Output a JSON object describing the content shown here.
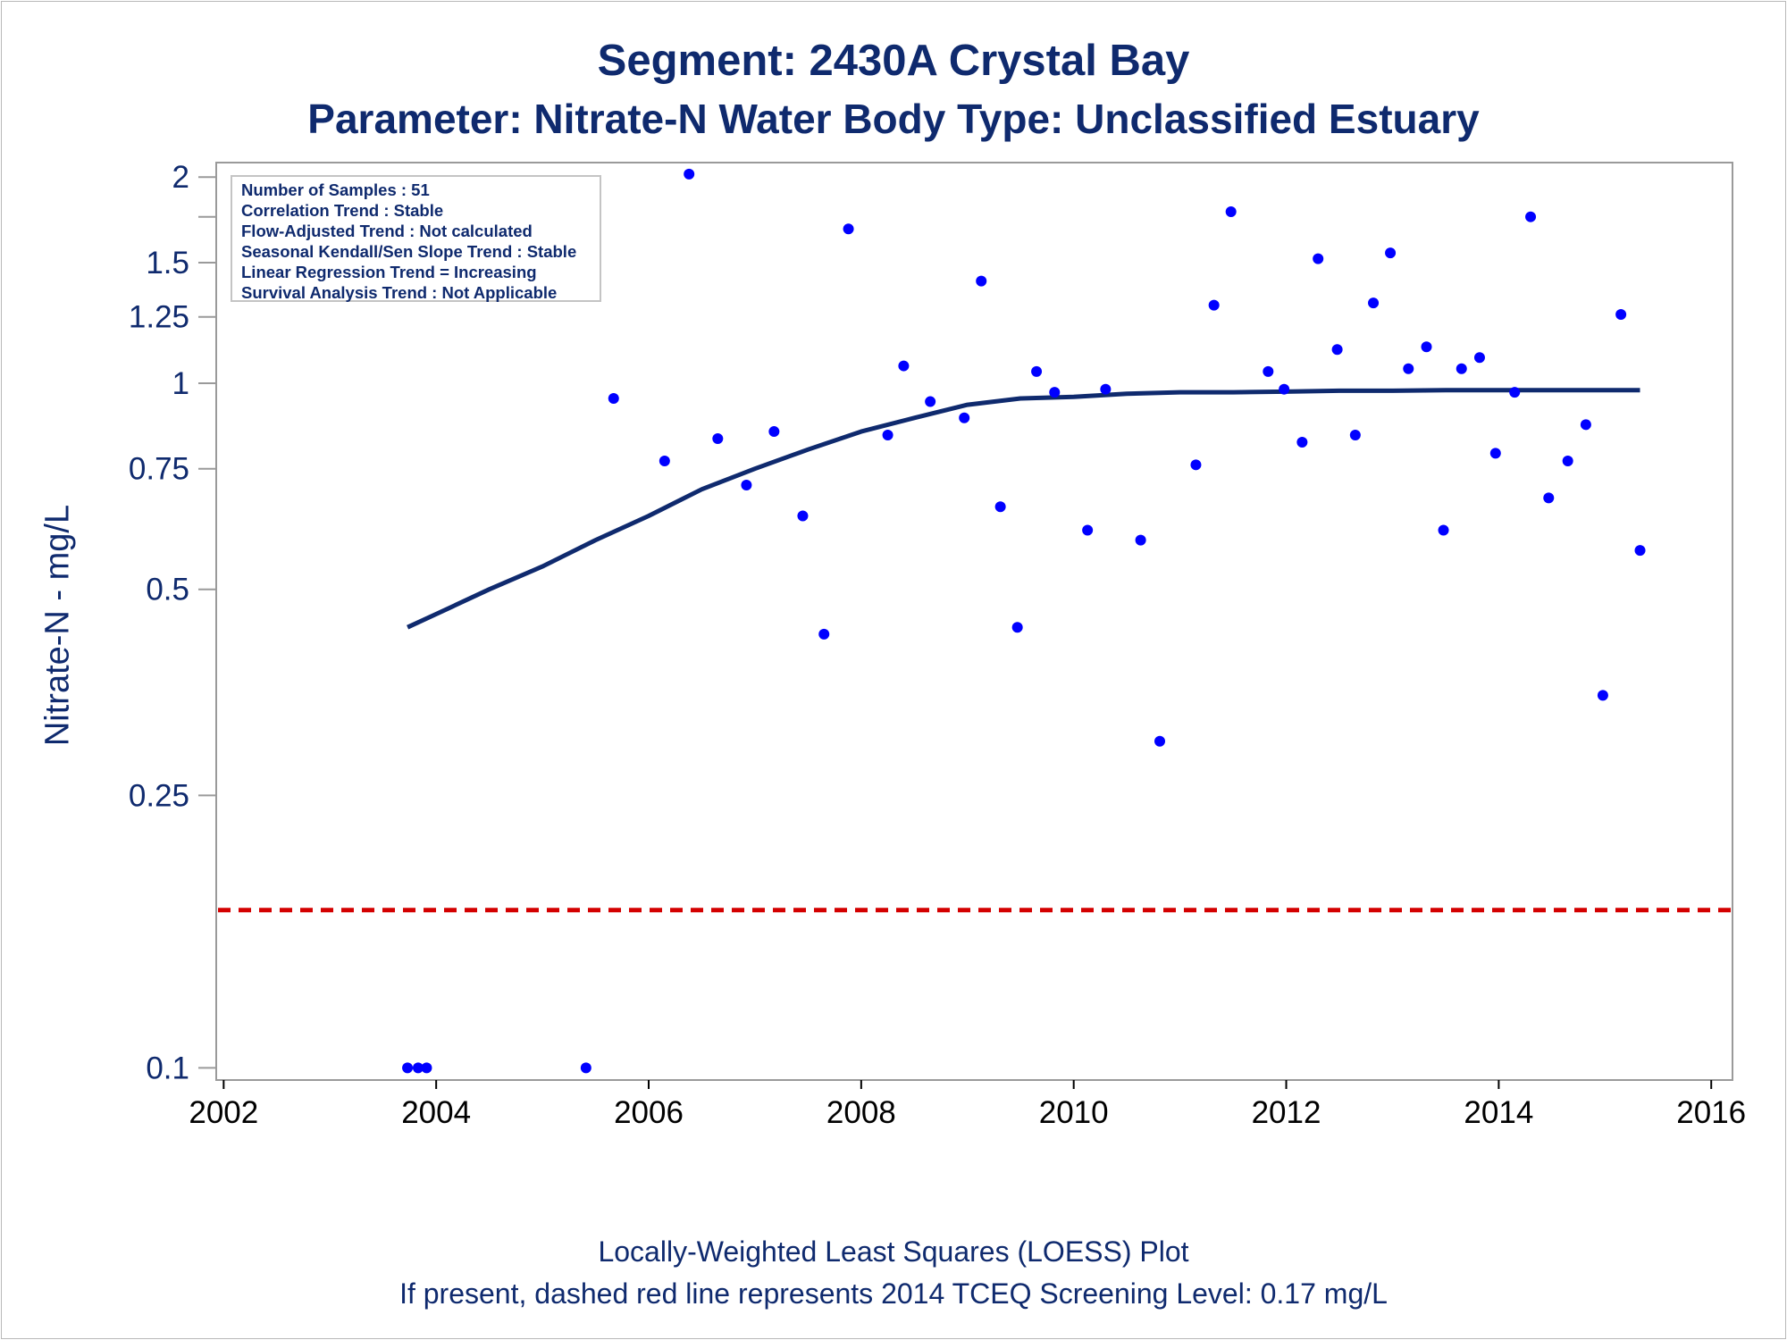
{
  "title": "Segment: 2430A  Crystal Bay",
  "subtitle": "Parameter: Nitrate-N   Water Body Type: Unclassified Estuary",
  "footer": {
    "line1": "Locally-Weighted Least Squares (LOESS) Plot",
    "line2": "If present, dashed red line represents 2014 TCEQ Screening Level: 0.17 mg/L"
  },
  "stats": [
    "Number of Samples : 51",
    "Correlation Trend : Stable",
    "Flow-Adjusted Trend : Not calculated",
    "Seasonal Kendall/Sen Slope Trend : Stable",
    "Linear Regression Trend = Increasing",
    "Survival Analysis Trend : Not Applicable"
  ],
  "colors": {
    "text": "#0f2a6e",
    "points": "#0000ff",
    "loess": "#0f2a6e",
    "screening": "#d40000",
    "axis": "#9a9a9a"
  },
  "chart_data": {
    "type": "scatter",
    "ylabel": "Nitrate-N - mg/L",
    "xlabel": "",
    "xscale": "date",
    "yscale": "log",
    "xlim": [
      2001.93,
      2016.2
    ],
    "ylim": [
      0.096,
      2.1
    ],
    "x_ticks": [
      2002,
      2004,
      2006,
      2008,
      2010,
      2012,
      2014,
      2016
    ],
    "y_ticks": [
      0.1,
      0.25,
      0.5,
      0.75,
      1,
      1.25,
      1.5,
      2
    ],
    "y_tick_labels": [
      "0.1",
      "0.25",
      "0.5",
      "0.75",
      "1",
      "1.25",
      "1.5",
      "2"
    ],
    "y_minor_ticks": [
      1.75
    ],
    "grid": false,
    "screening_level": 0.17,
    "points": [
      {
        "x": 2003.73,
        "y": 0.1
      },
      {
        "x": 2003.83,
        "y": 0.1
      },
      {
        "x": 2003.91,
        "y": 0.1
      },
      {
        "x": 2005.41,
        "y": 0.1
      },
      {
        "x": 2005.67,
        "y": 0.95
      },
      {
        "x": 2006.15,
        "y": 0.77
      },
      {
        "x": 2006.38,
        "y": 2.02
      },
      {
        "x": 2006.65,
        "y": 0.83
      },
      {
        "x": 2006.92,
        "y": 0.71
      },
      {
        "x": 2007.18,
        "y": 0.85
      },
      {
        "x": 2007.45,
        "y": 0.64
      },
      {
        "x": 2007.65,
        "y": 0.43
      },
      {
        "x": 2007.88,
        "y": 1.68
      },
      {
        "x": 2008.25,
        "y": 0.84
      },
      {
        "x": 2008.4,
        "y": 1.06
      },
      {
        "x": 2008.65,
        "y": 0.94
      },
      {
        "x": 2008.97,
        "y": 0.89
      },
      {
        "x": 2009.13,
        "y": 1.41
      },
      {
        "x": 2009.31,
        "y": 0.66
      },
      {
        "x": 2009.47,
        "y": 0.44
      },
      {
        "x": 2009.65,
        "y": 1.04
      },
      {
        "x": 2009.82,
        "y": 0.97
      },
      {
        "x": 2010.13,
        "y": 0.61
      },
      {
        "x": 2010.3,
        "y": 0.98
      },
      {
        "x": 2010.63,
        "y": 0.59
      },
      {
        "x": 2010.81,
        "y": 0.3
      },
      {
        "x": 2011.15,
        "y": 0.76
      },
      {
        "x": 2011.32,
        "y": 1.3
      },
      {
        "x": 2011.48,
        "y": 1.78
      },
      {
        "x": 2011.83,
        "y": 1.04
      },
      {
        "x": 2011.98,
        "y": 0.98
      },
      {
        "x": 2012.15,
        "y": 0.82
      },
      {
        "x": 2012.3,
        "y": 1.52
      },
      {
        "x": 2012.48,
        "y": 1.12
      },
      {
        "x": 2012.65,
        "y": 0.84
      },
      {
        "x": 2012.82,
        "y": 1.31
      },
      {
        "x": 2012.98,
        "y": 1.55
      },
      {
        "x": 2013.15,
        "y": 1.05
      },
      {
        "x": 2013.32,
        "y": 1.13
      },
      {
        "x": 2013.48,
        "y": 0.61
      },
      {
        "x": 2013.65,
        "y": 1.05
      },
      {
        "x": 2013.82,
        "y": 1.09
      },
      {
        "x": 2013.97,
        "y": 0.79
      },
      {
        "x": 2014.15,
        "y": 0.97
      },
      {
        "x": 2014.3,
        "y": 1.75
      },
      {
        "x": 2014.47,
        "y": 0.68
      },
      {
        "x": 2014.65,
        "y": 0.77
      },
      {
        "x": 2014.82,
        "y": 0.87
      },
      {
        "x": 2014.98,
        "y": 0.35
      },
      {
        "x": 2015.15,
        "y": 1.26
      },
      {
        "x": 2015.33,
        "y": 0.57
      }
    ],
    "loess": {
      "name": "",
      "x": [
        2003.73,
        2004.0,
        2004.5,
        2005.0,
        2005.5,
        2006.0,
        2006.5,
        2007.0,
        2007.5,
        2008.0,
        2008.5,
        2009.0,
        2009.5,
        2010.0,
        2010.5,
        2011.0,
        2011.5,
        2012.0,
        2012.5,
        2013.0,
        2013.5,
        2014.0,
        2014.5,
        2015.0,
        2015.33
      ],
      "y": [
        0.44,
        0.46,
        0.5,
        0.54,
        0.59,
        0.64,
        0.7,
        0.75,
        0.8,
        0.85,
        0.89,
        0.93,
        0.95,
        0.955,
        0.965,
        0.97,
        0.97,
        0.972,
        0.975,
        0.975,
        0.977,
        0.977,
        0.977,
        0.977,
        0.977
      ]
    }
  }
}
